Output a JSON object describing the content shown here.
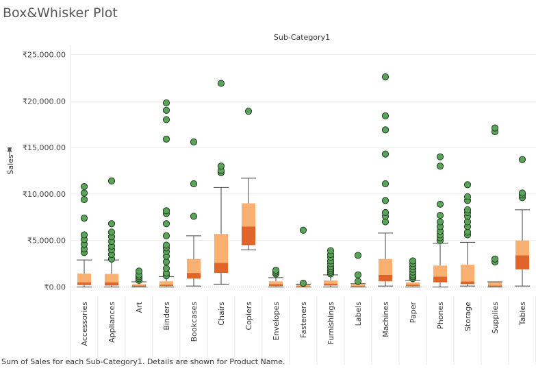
{
  "page": {
    "title": "Box&Whisker Plot",
    "footer": "Sum of Sales for each Sub-Category1.  Details are shown for Product Name."
  },
  "chart_data": {
    "type": "box",
    "title": "Sub-Category1",
    "xlabel": "",
    "ylabel": "Sales",
    "ylim": [
      -1000,
      26000
    ],
    "yticks": [
      0,
      5000,
      10000,
      15000,
      20000,
      25000
    ],
    "ytick_labels": [
      "₹0.00",
      "₹5,000.00",
      "₹10,000.00",
      "₹15,000.00",
      "₹20,000.00",
      "₹25,000.00"
    ],
    "grid": true,
    "colors": {
      "lower_box": "#e0652a",
      "upper_box": "#f9b173",
      "outlier_fill": "#5ba35a",
      "outlier_stroke": "#1f3d1f",
      "whisker": "#444444",
      "grid": "#ececec"
    },
    "categories": [
      {
        "name": "Accessories",
        "min": 0,
        "q1": 200,
        "median": 500,
        "q3": 1450,
        "max": 2900,
        "outliers": [
          3700,
          4100,
          4600,
          5100,
          5600,
          7400,
          9400,
          10100,
          10800
        ]
      },
      {
        "name": "Appliances",
        "min": 0,
        "q1": 150,
        "median": 500,
        "q3": 1400,
        "max": 2900,
        "outliers": [
          3000,
          3500,
          4000,
          4400,
          4900,
          5400,
          5900,
          6800,
          11400
        ]
      },
      {
        "name": "Art",
        "min": 0,
        "q1": 50,
        "median": 150,
        "q3": 300,
        "max": 550,
        "outliers": [
          700,
          900,
          1100,
          1300,
          1700
        ]
      },
      {
        "name": "Binders",
        "min": 0,
        "q1": 100,
        "median": 250,
        "q3": 600,
        "max": 1100,
        "outliers": [
          1200,
          1500,
          2000,
          2700,
          3300,
          3800,
          4200,
          4500,
          5500,
          6800,
          7900,
          8200,
          15900,
          18000,
          19000,
          19800
        ]
      },
      {
        "name": "Bookcases",
        "min": 100,
        "q1": 900,
        "median": 1500,
        "q3": 3000,
        "max": 5500,
        "outliers": [
          7600,
          11100,
          15600
        ]
      },
      {
        "name": "Chairs",
        "min": 300,
        "q1": 1500,
        "median": 2600,
        "q3": 5700,
        "max": 10700,
        "outliers": [
          12300,
          12500,
          13000,
          21900
        ]
      },
      {
        "name": "Copiers",
        "min": 4000,
        "q1": 4500,
        "median": 6500,
        "q3": 9000,
        "max": 11700,
        "outliers": [
          18900
        ]
      },
      {
        "name": "Envelopes",
        "min": 0,
        "q1": 100,
        "median": 300,
        "q3": 600,
        "max": 1000,
        "outliers": [
          1400,
          1600,
          1800
        ]
      },
      {
        "name": "Fasteners",
        "min": 0,
        "q1": 20,
        "median": 60,
        "q3": 250,
        "max": 300,
        "outliers": [
          400,
          6100
        ]
      },
      {
        "name": "Furnishings",
        "min": 0,
        "q1": 150,
        "median": 350,
        "q3": 700,
        "max": 1300,
        "outliers": [
          1400,
          1600,
          1800,
          2000,
          2200,
          2500,
          2800,
          3200,
          3500,
          3900
        ]
      },
      {
        "name": "Labels",
        "min": 0,
        "q1": 30,
        "median": 80,
        "q3": 300,
        "max": 350,
        "outliers": [
          600,
          1300,
          3400
        ]
      },
      {
        "name": "Machines",
        "min": 100,
        "q1": 600,
        "median": 1300,
        "q3": 3000,
        "max": 5800,
        "outliers": [
          7000,
          7600,
          8000,
          9300,
          11100,
          14300,
          16900,
          18400,
          22600
        ]
      },
      {
        "name": "Paper",
        "min": 0,
        "q1": 100,
        "median": 250,
        "q3": 500,
        "max": 700,
        "outliers": [
          900,
          1100,
          1300,
          1600,
          1900,
          2200,
          2500,
          2800
        ]
      },
      {
        "name": "Phones",
        "min": 0,
        "q1": 500,
        "median": 1100,
        "q3": 2300,
        "max": 4700,
        "outliers": [
          5000,
          5300,
          5600,
          6000,
          6500,
          7000,
          7700,
          8900,
          13000,
          14000
        ]
      },
      {
        "name": "Storage",
        "min": 100,
        "q1": 300,
        "median": 600,
        "q3": 2400,
        "max": 4800,
        "outliers": [
          5600,
          5900,
          6500,
          7000,
          7600,
          8000,
          8300,
          9300,
          9700,
          11000
        ]
      },
      {
        "name": "Supplies",
        "min": 0,
        "q1": 50,
        "median": 150,
        "q3": 500,
        "max": 550,
        "outliers": [
          2700,
          3000,
          16700,
          17100
        ]
      },
      {
        "name": "Tables",
        "min": 100,
        "q1": 1900,
        "median": 3400,
        "q3": 5000,
        "max": 8300,
        "outliers": [
          9600,
          9900,
          10100,
          13700
        ]
      }
    ]
  }
}
